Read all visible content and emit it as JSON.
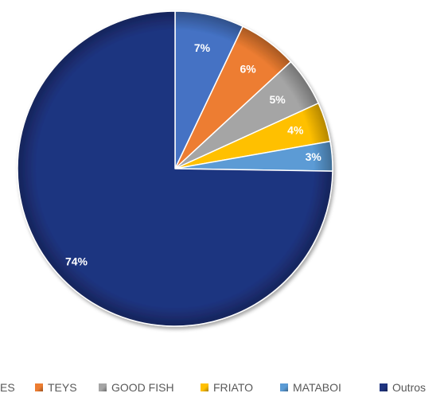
{
  "chart_data": {
    "type": "pie",
    "categories": [
      "ES",
      "TEYS",
      "GOOD FISH",
      "FRIATO",
      "MATABOI",
      "Outros"
    ],
    "values": [
      7,
      6,
      5,
      4,
      3,
      74
    ],
    "data_labels": [
      "7%",
      "6%",
      "5%",
      "4%",
      "3%",
      "74%"
    ],
    "colors": [
      "#4472C4",
      "#ED7D31",
      "#A5A5A5",
      "#FFC000",
      "#5B9BD5",
      "#1F3480"
    ],
    "legend_position": "bottom",
    "start_angle": "top",
    "direction": "clockwise"
  }
}
